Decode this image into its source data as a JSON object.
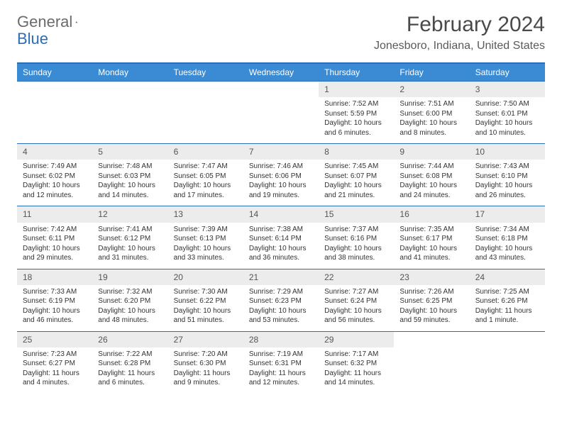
{
  "brand": {
    "general": "General",
    "blue": "Blue"
  },
  "title": "February 2024",
  "location": "Jonesboro, Indiana, United States",
  "colors": {
    "header_bg": "#3b8bd4",
    "border": "#2a6db8",
    "daynum_bg": "#ececec",
    "text": "#333333"
  },
  "dayNames": [
    "Sunday",
    "Monday",
    "Tuesday",
    "Wednesday",
    "Thursday",
    "Friday",
    "Saturday"
  ],
  "weeks": [
    [
      null,
      null,
      null,
      null,
      {
        "n": "1",
        "sr": "7:52 AM",
        "ss": "5:59 PM",
        "dl": "10 hours and 6 minutes."
      },
      {
        "n": "2",
        "sr": "7:51 AM",
        "ss": "6:00 PM",
        "dl": "10 hours and 8 minutes."
      },
      {
        "n": "3",
        "sr": "7:50 AM",
        "ss": "6:01 PM",
        "dl": "10 hours and 10 minutes."
      }
    ],
    [
      {
        "n": "4",
        "sr": "7:49 AM",
        "ss": "6:02 PM",
        "dl": "10 hours and 12 minutes."
      },
      {
        "n": "5",
        "sr": "7:48 AM",
        "ss": "6:03 PM",
        "dl": "10 hours and 14 minutes."
      },
      {
        "n": "6",
        "sr": "7:47 AM",
        "ss": "6:05 PM",
        "dl": "10 hours and 17 minutes."
      },
      {
        "n": "7",
        "sr": "7:46 AM",
        "ss": "6:06 PM",
        "dl": "10 hours and 19 minutes."
      },
      {
        "n": "8",
        "sr": "7:45 AM",
        "ss": "6:07 PM",
        "dl": "10 hours and 21 minutes."
      },
      {
        "n": "9",
        "sr": "7:44 AM",
        "ss": "6:08 PM",
        "dl": "10 hours and 24 minutes."
      },
      {
        "n": "10",
        "sr": "7:43 AM",
        "ss": "6:10 PM",
        "dl": "10 hours and 26 minutes."
      }
    ],
    [
      {
        "n": "11",
        "sr": "7:42 AM",
        "ss": "6:11 PM",
        "dl": "10 hours and 29 minutes."
      },
      {
        "n": "12",
        "sr": "7:41 AM",
        "ss": "6:12 PM",
        "dl": "10 hours and 31 minutes."
      },
      {
        "n": "13",
        "sr": "7:39 AM",
        "ss": "6:13 PM",
        "dl": "10 hours and 33 minutes."
      },
      {
        "n": "14",
        "sr": "7:38 AM",
        "ss": "6:14 PM",
        "dl": "10 hours and 36 minutes."
      },
      {
        "n": "15",
        "sr": "7:37 AM",
        "ss": "6:16 PM",
        "dl": "10 hours and 38 minutes."
      },
      {
        "n": "16",
        "sr": "7:35 AM",
        "ss": "6:17 PM",
        "dl": "10 hours and 41 minutes."
      },
      {
        "n": "17",
        "sr": "7:34 AM",
        "ss": "6:18 PM",
        "dl": "10 hours and 43 minutes."
      }
    ],
    [
      {
        "n": "18",
        "sr": "7:33 AM",
        "ss": "6:19 PM",
        "dl": "10 hours and 46 minutes."
      },
      {
        "n": "19",
        "sr": "7:32 AM",
        "ss": "6:20 PM",
        "dl": "10 hours and 48 minutes."
      },
      {
        "n": "20",
        "sr": "7:30 AM",
        "ss": "6:22 PM",
        "dl": "10 hours and 51 minutes."
      },
      {
        "n": "21",
        "sr": "7:29 AM",
        "ss": "6:23 PM",
        "dl": "10 hours and 53 minutes."
      },
      {
        "n": "22",
        "sr": "7:27 AM",
        "ss": "6:24 PM",
        "dl": "10 hours and 56 minutes."
      },
      {
        "n": "23",
        "sr": "7:26 AM",
        "ss": "6:25 PM",
        "dl": "10 hours and 59 minutes."
      },
      {
        "n": "24",
        "sr": "7:25 AM",
        "ss": "6:26 PM",
        "dl": "11 hours and 1 minute."
      }
    ],
    [
      {
        "n": "25",
        "sr": "7:23 AM",
        "ss": "6:27 PM",
        "dl": "11 hours and 4 minutes."
      },
      {
        "n": "26",
        "sr": "7:22 AM",
        "ss": "6:28 PM",
        "dl": "11 hours and 6 minutes."
      },
      {
        "n": "27",
        "sr": "7:20 AM",
        "ss": "6:30 PM",
        "dl": "11 hours and 9 minutes."
      },
      {
        "n": "28",
        "sr": "7:19 AM",
        "ss": "6:31 PM",
        "dl": "11 hours and 12 minutes."
      },
      {
        "n": "29",
        "sr": "7:17 AM",
        "ss": "6:32 PM",
        "dl": "11 hours and 14 minutes."
      },
      null,
      null
    ]
  ],
  "labels": {
    "sunrise": "Sunrise:",
    "sunset": "Sunset:",
    "daylight": "Daylight:"
  }
}
